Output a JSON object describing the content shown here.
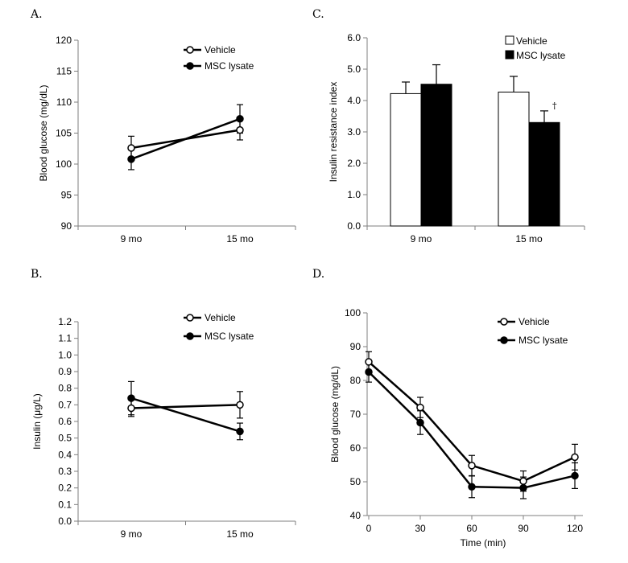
{
  "chart_data": [
    {
      "id": "A",
      "panel_label": "A.",
      "type": "line",
      "categories": [
        "9 mo",
        "15 mo"
      ],
      "ylabel": "Blood glucose (mg/dL)",
      "xlabel": "",
      "ylim": [
        90,
        120
      ],
      "yticks": [
        90,
        95,
        100,
        105,
        110,
        115,
        120
      ],
      "ytick_labels": [
        "90",
        "95",
        "100",
        "105",
        "110",
        "115",
        "120"
      ],
      "legend_position": "top-right",
      "series": [
        {
          "name": "Vehicle",
          "marker": "open",
          "values": [
            102.6,
            105.5
          ],
          "errors": [
            1.9,
            1.6
          ]
        },
        {
          "name": "MSC lysate",
          "marker": "filled",
          "values": [
            100.8,
            107.3
          ],
          "errors": [
            1.7,
            2.3
          ]
        }
      ]
    },
    {
      "id": "B",
      "panel_label": "B.",
      "type": "line",
      "categories": [
        "9 mo",
        "15 mo"
      ],
      "ylabel": "Insulin (μg/L)",
      "xlabel": "",
      "ylim": [
        0,
        1.2
      ],
      "yticks": [
        0,
        0.1,
        0.2,
        0.3,
        0.4,
        0.5,
        0.6,
        0.7,
        0.8,
        0.9,
        1.0,
        1.1,
        1.2
      ],
      "ytick_labels": [
        "0.0",
        "0.1",
        "0.2",
        "0.3",
        "0.4",
        "0.5",
        "0.6",
        "0.7",
        "0.8",
        "0.9",
        "1.0",
        "1.1",
        "1.2"
      ],
      "legend_position": "top-right",
      "series": [
        {
          "name": "Vehicle",
          "marker": "open",
          "values": [
            0.68,
            0.7
          ],
          "errors": [
            0.05,
            0.08
          ]
        },
        {
          "name": "MSC lysate",
          "marker": "filled",
          "values": [
            0.74,
            0.54
          ],
          "errors": [
            0.1,
            0.05
          ]
        }
      ]
    },
    {
      "id": "C",
      "panel_label": "C.",
      "type": "bar",
      "categories": [
        "9 mo",
        "15 mo"
      ],
      "ylabel": "Insulin resistance index",
      "xlabel": "",
      "ylim": [
        0,
        6.0
      ],
      "yticks": [
        0,
        1,
        2,
        3,
        4,
        5,
        6
      ],
      "ytick_labels": [
        "0.0",
        "1.0",
        "2.0",
        "3.0",
        "4.0",
        "5.0",
        "6.0"
      ],
      "legend_position": "top-right",
      "annotation": "†",
      "series": [
        {
          "name": "Vehicle",
          "fill": "white",
          "values": [
            4.22,
            4.27
          ],
          "errors": [
            0.37,
            0.5
          ]
        },
        {
          "name": "MSC lysate",
          "fill": "black",
          "values": [
            4.52,
            3.3
          ],
          "errors": [
            0.62,
            0.37
          ]
        }
      ]
    },
    {
      "id": "D",
      "panel_label": "D.",
      "type": "line",
      "x": [
        0,
        30,
        60,
        90,
        120
      ],
      "xtick_labels": [
        "0",
        "30",
        "60",
        "90",
        "120"
      ],
      "xlabel": "Time (min)",
      "ylabel": "Blood glucose (mg/dL)",
      "xlim": [
        0,
        120
      ],
      "ylim": [
        40,
        100
      ],
      "yticks": [
        40,
        50,
        60,
        70,
        80,
        90,
        100
      ],
      "ytick_labels": [
        "40",
        "50",
        "60",
        "70",
        "80",
        "90",
        "100"
      ],
      "legend_position": "top-right",
      "series": [
        {
          "name": "Vehicle",
          "marker": "open",
          "values": [
            85.5,
            72.0,
            54.8,
            50.2,
            57.3
          ],
          "errors": [
            3.0,
            3.0,
            3.0,
            3.0,
            3.8
          ]
        },
        {
          "name": "MSC lysate",
          "marker": "filled",
          "values": [
            82.5,
            67.5,
            48.5,
            48.2,
            51.8
          ],
          "errors": [
            3.0,
            3.5,
            3.2,
            3.2,
            3.8
          ]
        }
      ]
    }
  ]
}
